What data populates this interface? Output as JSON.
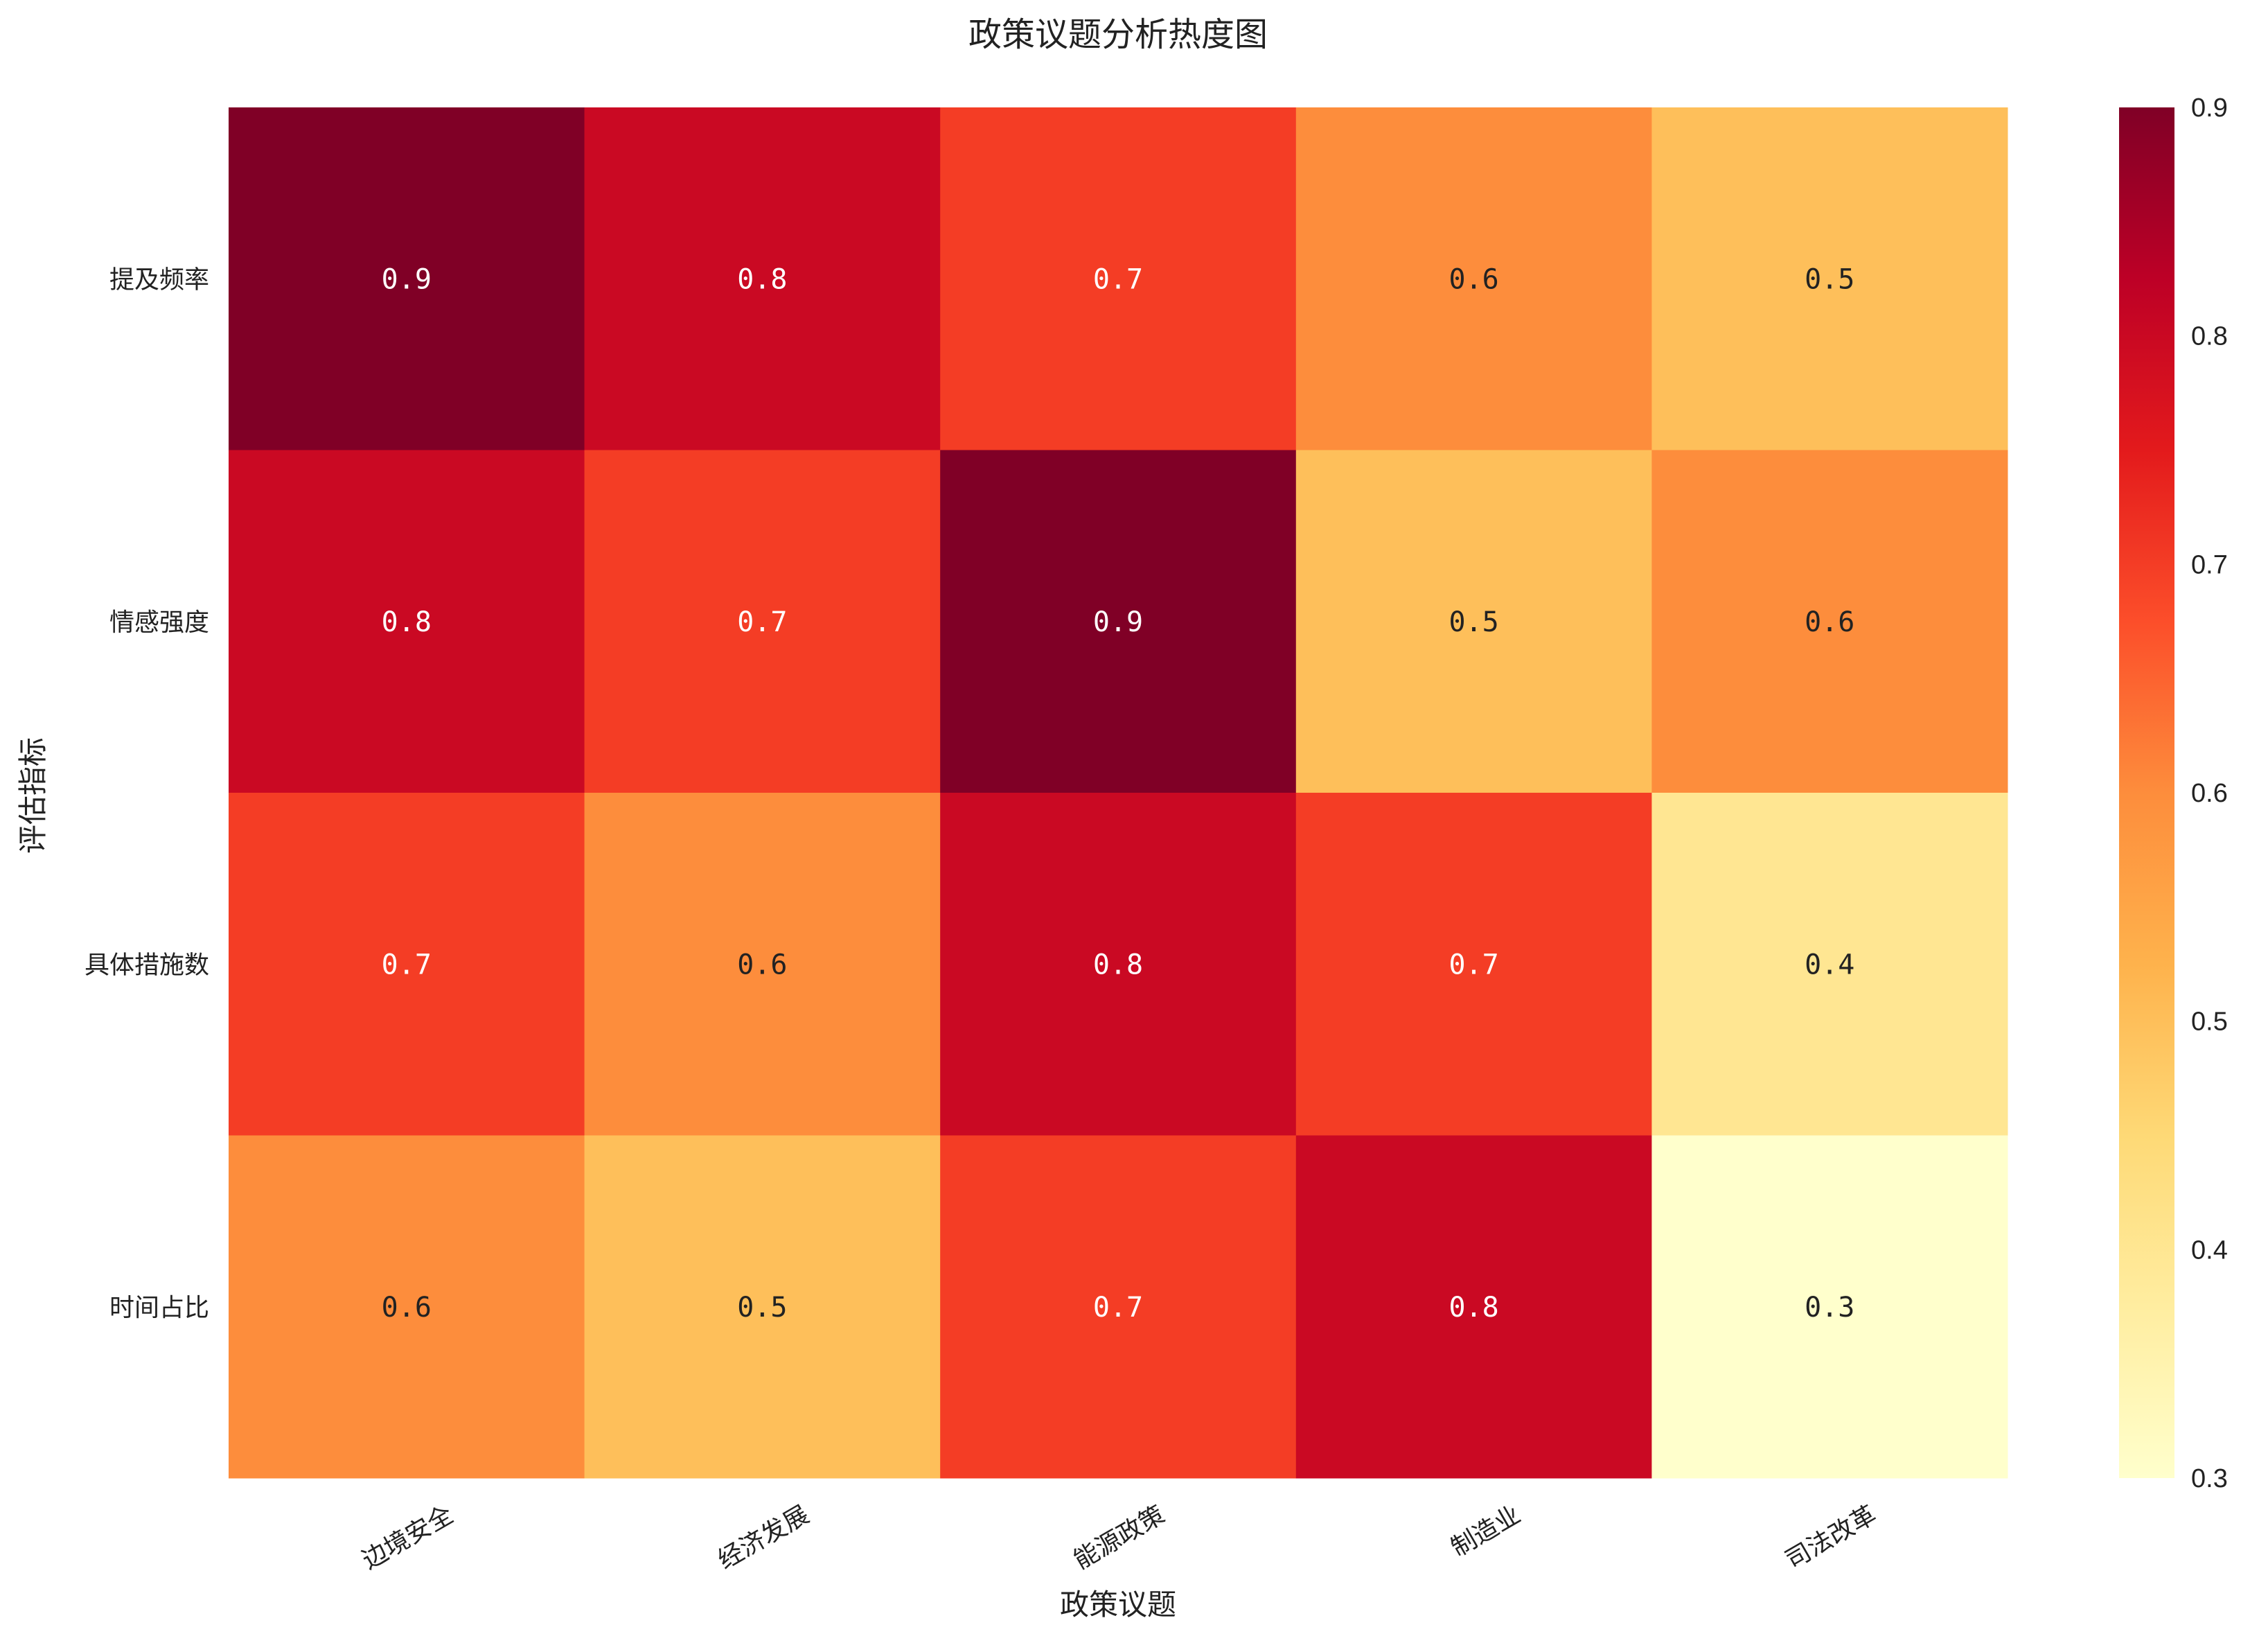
{
  "chart_data": {
    "type": "heatmap",
    "title": "政策议题分析热度图",
    "xlabel": "政策议题",
    "ylabel": "评估指标",
    "x_categories": [
      "边境安全",
      "经济发展",
      "能源政策",
      "制造业",
      "司法改革"
    ],
    "y_categories": [
      "提及频率",
      "情感强度",
      "具体措施数",
      "时间占比"
    ],
    "values": [
      [
        0.9,
        0.8,
        0.7,
        0.6,
        0.5
      ],
      [
        0.8,
        0.7,
        0.9,
        0.5,
        0.6
      ],
      [
        0.7,
        0.6,
        0.8,
        0.7,
        0.4
      ],
      [
        0.6,
        0.5,
        0.7,
        0.8,
        0.3
      ]
    ],
    "colormap": "YlOrRd",
    "vmin": 0.3,
    "vmax": 0.9,
    "colorbar_ticks": [
      "0.3",
      "0.4",
      "0.5",
      "0.6",
      "0.7",
      "0.8",
      "0.9"
    ],
    "annotations": true,
    "grid": false,
    "legend": "colorbar-right"
  }
}
